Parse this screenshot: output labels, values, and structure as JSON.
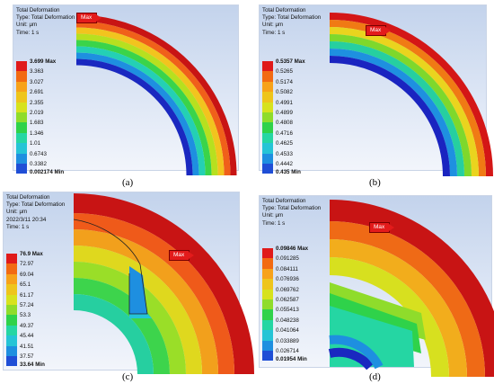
{
  "panels": {
    "a": {
      "caption": "(a)",
      "title": "Total Deformation",
      "type_line": "Type: Total Deformation",
      "unit": "Unit: μm",
      "time": "Time: 1 s",
      "max_tag": "Max",
      "legend": [
        "3.699 Max",
        "3.363",
        "3.027",
        "2.691",
        "2.355",
        "2.019",
        "1.683",
        "1.346",
        "1.01",
        "0.6743",
        "0.3382",
        "0.002174 Min"
      ]
    },
    "b": {
      "caption": "(b)",
      "title": "Total Deformation",
      "type_line": "Type: Total Deformation",
      "unit": "Unit: μm",
      "time": "Time: 1 s",
      "max_tag": "Max",
      "legend": [
        "0.5357 Max",
        "0.5265",
        "0.5174",
        "0.5082",
        "0.4991",
        "0.4899",
        "0.4808",
        "0.4716",
        "0.4625",
        "0.4533",
        "0.4442",
        "0.435 Min"
      ]
    },
    "c": {
      "caption": "(c)",
      "title": "Total Deformation",
      "type_line": "Type: Total Deformation",
      "unit": "Unit: μm",
      "time": "Time: 1 s",
      "date": "2022/3/11 20:34",
      "max_tag": "Max",
      "legend": [
        "76.9 Max",
        "72.97",
        "69.04",
        "65.1",
        "61.17",
        "57.24",
        "53.3",
        "49.37",
        "45.44",
        "41.51",
        "37.57",
        "33.64 Min"
      ]
    },
    "d": {
      "caption": "(d)",
      "title": "Total Deformation",
      "type_line": "Type: Total Deformation",
      "unit": "Unit: μm",
      "time": "Time: 1 s",
      "max_tag": "Max",
      "legend": [
        "0.09846 Max",
        "0.091285",
        "0.084111",
        "0.076936",
        "0.069762",
        "0.062587",
        "0.055413",
        "0.048238",
        "0.041064",
        "0.033889",
        "0.026714",
        "0.01954 Min"
      ]
    }
  },
  "colors": {
    "legend_scale": [
      "#e01a1a",
      "#f26a12",
      "#f7a21a",
      "#eec51c",
      "#d7e21e",
      "#8fdc2b",
      "#2fd24a",
      "#25d6a3",
      "#25c4d6",
      "#1e8fe0",
      "#1f4ed6",
      "#1a1ab8"
    ]
  }
}
